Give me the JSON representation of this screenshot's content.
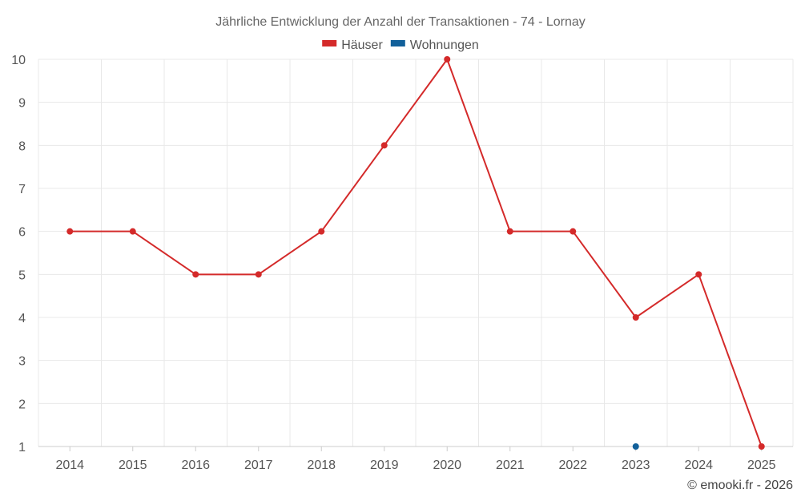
{
  "chart_data": {
    "type": "line",
    "title": "Jährliche Entwicklung der Anzahl der Transaktionen - 74 - Lornay",
    "categories": [
      "2014",
      "2015",
      "2016",
      "2017",
      "2018",
      "2019",
      "2020",
      "2021",
      "2022",
      "2023",
      "2024",
      "2025"
    ],
    "ylim": [
      1,
      10
    ],
    "yticks": [
      1,
      2,
      3,
      4,
      5,
      6,
      7,
      8,
      9,
      10
    ],
    "grid": true,
    "legend_position": "top",
    "series": [
      {
        "name": "Häuser",
        "color": "#d42a2a",
        "values": [
          6,
          6,
          5,
          5,
          6,
          8,
          10,
          6,
          6,
          4,
          5,
          1
        ]
      },
      {
        "name": "Wohnungen",
        "color": "#11609a",
        "values": [
          null,
          null,
          null,
          null,
          null,
          null,
          null,
          null,
          null,
          1,
          null,
          null
        ]
      }
    ]
  },
  "credit": "© emooki.fr - 2026"
}
